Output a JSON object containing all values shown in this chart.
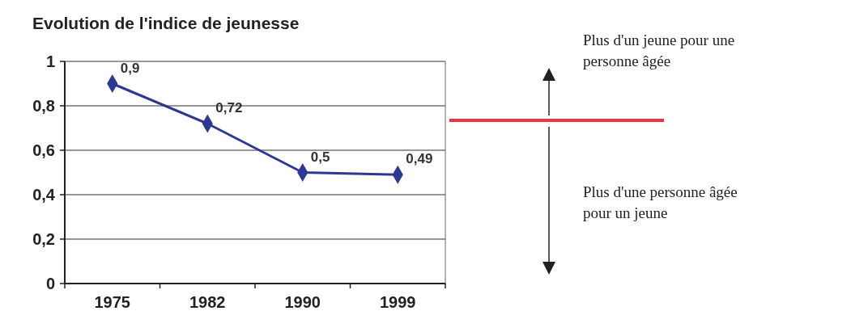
{
  "chart_data": {
    "type": "line",
    "title": "Evolution de l'indice de jeunesse",
    "categories": [
      "1975",
      "1982",
      "1990",
      "1999"
    ],
    "series": [
      {
        "color": "#2b3990",
        "values": [
          0.9,
          0.72,
          0.5,
          0.49
        ],
        "value_labels": [
          "0,9",
          "0,72",
          "0,5",
          "0,49"
        ]
      }
    ],
    "ylim": [
      0,
      1
    ],
    "yticks": [
      {
        "value": 0,
        "label": "0"
      },
      {
        "value": 0.2,
        "label": "0,2"
      },
      {
        "value": 0.4,
        "label": "0,4"
      },
      {
        "value": 0.6,
        "label": "0,6"
      },
      {
        "value": 0.8,
        "label": "0,8"
      },
      {
        "value": 1,
        "label": "1"
      }
    ],
    "grid": "y",
    "marker": "diamond",
    "line_style": "solid",
    "annotations": [
      "Plus d'un jeune pour une personne âgée",
      "Plus d'une personne âgée pour un jeune"
    ]
  }
}
